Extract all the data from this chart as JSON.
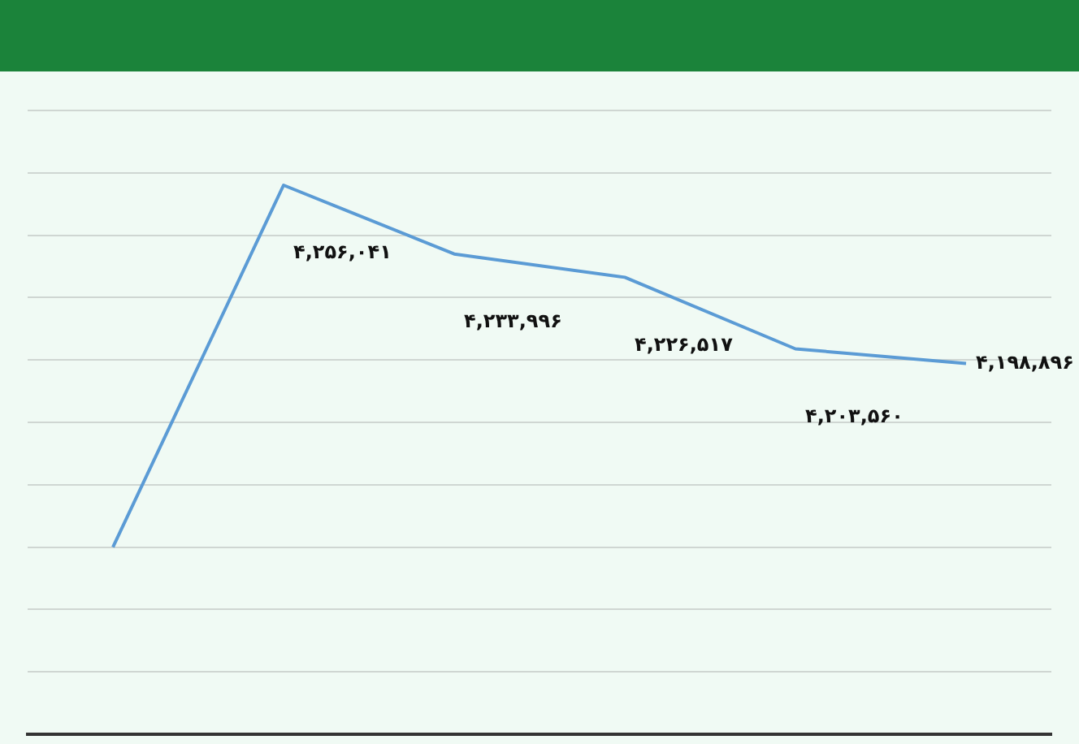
{
  "chart_data": {
    "type": "line",
    "categories": [
      null,
      null,
      null,
      null,
      null,
      null
    ],
    "values": [
      4140000,
      4256041,
      4233996,
      4226517,
      4203560,
      4198896
    ],
    "value_labels": [
      null,
      "۴,۲۵۶,۰۴۱",
      "۴,۲۳۳,۹۹۶",
      "۴,۲۲۶,۵۱۷",
      "۴,۲۰۳,۵۶۰",
      "۴,۱۹۸,۸۹۶"
    ],
    "color": "#5b9bd5",
    "ylim": [
      4080000,
      4280000
    ],
    "yticks": [
      {
        "value": 4080000,
        "label": null
      },
      {
        "value": 4100000,
        "label": null
      },
      {
        "value": 4120000,
        "label": null
      },
      {
        "value": 4140000,
        "label": null
      },
      {
        "value": 4160000,
        "label": null
      },
      {
        "value": 4180000,
        "label": null
      },
      {
        "value": 4200000,
        "label": null
      },
      {
        "value": 4220000,
        "label": null
      },
      {
        "value": 4240000,
        "label": null
      },
      {
        "value": 4260000,
        "label": null
      },
      {
        "value": 4280000,
        "label": null
      }
    ],
    "grid": "y",
    "tick_labels": false,
    "marker": "none"
  }
}
